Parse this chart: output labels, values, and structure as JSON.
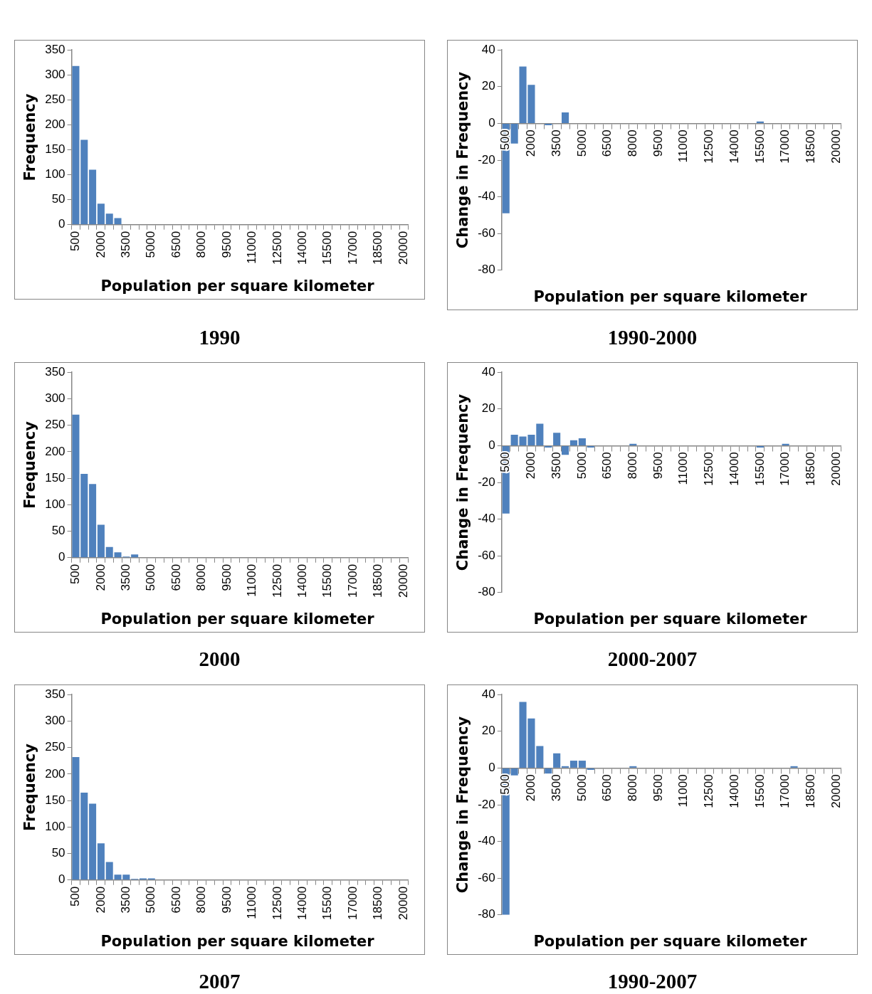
{
  "chart_data": [
    {
      "type": "bar",
      "title": "1990",
      "xlabel": "Population per square kilometer",
      "ylabel": "Frequency",
      "color": "#4f81bd",
      "ylim": [
        0,
        350
      ],
      "yticks": [
        0,
        50,
        100,
        150,
        200,
        250,
        300,
        350
      ],
      "categories": [
        "500",
        null,
        null,
        "2000",
        null,
        null,
        "3500",
        null,
        null,
        "5000",
        null,
        null,
        "6500",
        null,
        null,
        "8000",
        null,
        null,
        "9500",
        null,
        null,
        "11000",
        null,
        null,
        "12500",
        null,
        null,
        "14000",
        null,
        null,
        "15500",
        null,
        null,
        "17000",
        null,
        null,
        "18500",
        null,
        null,
        "20000"
      ],
      "values": [
        318,
        170,
        110,
        42,
        22,
        13,
        0,
        0,
        0,
        0,
        0,
        0,
        0,
        0,
        0,
        0,
        0,
        0,
        0,
        0,
        0,
        0,
        0,
        0,
        0,
        0,
        0,
        0,
        0,
        0,
        0,
        0,
        0,
        0,
        0,
        0,
        0,
        0,
        0,
        0
      ]
    },
    {
      "type": "bar",
      "title": "1990-2000",
      "xlabel": "Population per square kilometer",
      "ylabel": "Change in Frequency",
      "color": "#4f81bd",
      "ylim": [
        -80,
        40
      ],
      "yticks": [
        -80,
        -60,
        -40,
        -20,
        0,
        20,
        40
      ],
      "categories": [
        "500",
        null,
        null,
        "2000",
        null,
        null,
        "3500",
        null,
        null,
        "5000",
        null,
        null,
        "6500",
        null,
        null,
        "8000",
        null,
        null,
        "9500",
        null,
        null,
        "11000",
        null,
        null,
        "12500",
        null,
        null,
        "14000",
        null,
        null,
        "15500",
        null,
        null,
        "17000",
        null,
        null,
        "18500",
        null,
        null,
        "20000"
      ],
      "values": [
        -49,
        -11,
        31,
        21,
        0,
        -1,
        0,
        6,
        0,
        0,
        0,
        0,
        0,
        0,
        0,
        0,
        0,
        0,
        0,
        0,
        0,
        0,
        0,
        0,
        0,
        0,
        0,
        0,
        0,
        0,
        1,
        0,
        0,
        0,
        0,
        0,
        0,
        0,
        0,
        0
      ]
    },
    {
      "type": "bar",
      "title": "2000",
      "xlabel": "Population per square kilometer",
      "ylabel": "Frequency",
      "color": "#4f81bd",
      "ylim": [
        0,
        350
      ],
      "yticks": [
        0,
        50,
        100,
        150,
        200,
        250,
        300,
        350
      ],
      "categories": [
        "500",
        null,
        null,
        "2000",
        null,
        null,
        "3500",
        null,
        null,
        "5000",
        null,
        null,
        "6500",
        null,
        null,
        "8000",
        null,
        null,
        "9500",
        null,
        null,
        "11000",
        null,
        null,
        "12500",
        null,
        null,
        "14000",
        null,
        null,
        "15500",
        null,
        null,
        "17000",
        null,
        null,
        "18500",
        null,
        null,
        "20000"
      ],
      "values": [
        270,
        158,
        139,
        62,
        20,
        10,
        2,
        6,
        0,
        0,
        0,
        0,
        0,
        0,
        0,
        0,
        0,
        0,
        0,
        0,
        0,
        0,
        0,
        0,
        0,
        0,
        0,
        0,
        0,
        0,
        0,
        0,
        0,
        0,
        0,
        0,
        0,
        0,
        0,
        0
      ]
    },
    {
      "type": "bar",
      "title": "2000-2007",
      "xlabel": "Population per square kilometer",
      "ylabel": "Change in Frequency",
      "color": "#4f81bd",
      "ylim": [
        -80,
        40
      ],
      "yticks": [
        -80,
        -60,
        -40,
        -20,
        0,
        20,
        40
      ],
      "categories": [
        "500",
        null,
        null,
        "2000",
        null,
        null,
        "3500",
        null,
        null,
        "5000",
        null,
        null,
        "6500",
        null,
        null,
        "8000",
        null,
        null,
        "9500",
        null,
        null,
        "11000",
        null,
        null,
        "12500",
        null,
        null,
        "14000",
        null,
        null,
        "15500",
        null,
        null,
        "17000",
        null,
        null,
        "18500",
        null,
        null,
        "20000"
      ],
      "values": [
        -37,
        6,
        5,
        6,
        12,
        -1,
        7,
        -5,
        3,
        4,
        -1,
        0,
        0,
        0,
        0,
        1,
        0,
        0,
        0,
        0,
        0,
        0,
        0,
        0,
        0,
        0,
        0,
        0,
        0,
        0,
        -1,
        0,
        0,
        1,
        0,
        0,
        0,
        0,
        0,
        0
      ]
    },
    {
      "type": "bar",
      "title": "2007",
      "xlabel": "Population per square kilometer",
      "ylabel": "Frequency",
      "color": "#4f81bd",
      "ylim": [
        0,
        350
      ],
      "yticks": [
        0,
        50,
        100,
        150,
        200,
        250,
        300,
        350
      ],
      "categories": [
        "500",
        null,
        null,
        "2000",
        null,
        null,
        "3500",
        null,
        null,
        "5000",
        null,
        null,
        "6500",
        null,
        null,
        "8000",
        null,
        null,
        "9500",
        null,
        null,
        "11000",
        null,
        null,
        "12500",
        null,
        null,
        "14000",
        null,
        null,
        "15500",
        null,
        null,
        "17000",
        null,
        null,
        "18500",
        null,
        null,
        "20000"
      ],
      "values": [
        232,
        165,
        144,
        69,
        34,
        10,
        10,
        2,
        3,
        3,
        0,
        0,
        0,
        0,
        0,
        0,
        0,
        0,
        0,
        0,
        0,
        0,
        0,
        0,
        0,
        0,
        0,
        0,
        0,
        0,
        0,
        0,
        0,
        0,
        0,
        0,
        0,
        0,
        0,
        0
      ]
    },
    {
      "type": "bar",
      "title": "1990-2007",
      "xlabel": "Population per square kilometer",
      "ylabel": "Change in Frequency",
      "color": "#4f81bd",
      "ylim": [
        -80,
        40
      ],
      "yticks": [
        -80,
        -60,
        -40,
        -20,
        0,
        20,
        40
      ],
      "categories": [
        "500",
        null,
        null,
        "2000",
        null,
        null,
        "3500",
        null,
        null,
        "5000",
        null,
        null,
        "6500",
        null,
        null,
        "8000",
        null,
        null,
        "9500",
        null,
        null,
        "11000",
        null,
        null,
        "12500",
        null,
        null,
        "14000",
        null,
        null,
        "15500",
        null,
        null,
        "17000",
        null,
        null,
        "18500",
        null,
        null,
        "20000"
      ],
      "values": [
        -80,
        -4,
        36,
        27,
        12,
        -3,
        8,
        1,
        4,
        4,
        -1,
        0,
        0,
        0,
        0,
        1,
        0,
        0,
        0,
        0,
        0,
        0,
        0,
        0,
        0,
        0,
        0,
        0,
        0,
        0,
        0,
        0,
        0,
        0,
        1,
        0,
        0,
        0,
        0,
        0
      ]
    }
  ]
}
